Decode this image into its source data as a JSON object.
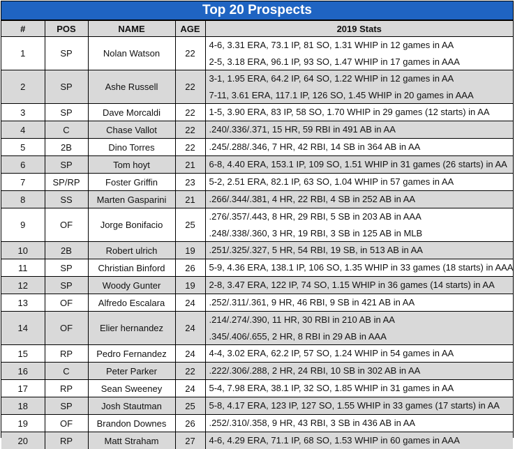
{
  "title": "Top 20 Prospects",
  "headers": [
    "#",
    "POS",
    "NAME",
    "AGE",
    "2019 Stats"
  ],
  "rows": [
    {
      "num": "1",
      "pos": "SP",
      "name": "Nolan Watson",
      "age": "22",
      "stats": [
        "4-6, 3.31 ERA, 73.1 IP, 81 SO, 1.31 WHIP in 12 games in AA",
        "2-5, 3.18 ERA, 96.1 IP, 93 SO, 1.47 WHIP in 17 games in AAA"
      ]
    },
    {
      "num": "2",
      "pos": "SP",
      "name": "Ashe Russell",
      "age": "22",
      "stats": [
        "3-1, 1.95 ERA, 64.2 IP, 64 SO, 1.22 WHIP in 12 games in AA",
        "7-11, 3.61 ERA, 117.1 IP, 126 SO, 1.45 WHIP in 20 games in AAA"
      ]
    },
    {
      "num": "3",
      "pos": "SP",
      "name": "Dave Morcaldi",
      "age": "22",
      "stats": [
        "1-5, 3.90 ERA, 83 IP,  58 SO, 1.70 WHIP in 29 games (12 starts) in AA"
      ]
    },
    {
      "num": "4",
      "pos": "C",
      "name": "Chase Vallot",
      "age": "22",
      "stats": [
        ".240/.336/.371, 15 HR, 59 RBI in 491 AB in AA"
      ]
    },
    {
      "num": "5",
      "pos": "2B",
      "name": "Dino Torres",
      "age": "22",
      "stats": [
        ".245/.288/.346, 7 HR, 42 RBI, 14 SB in 364 AB in AA"
      ]
    },
    {
      "num": "6",
      "pos": "SP",
      "name": "Tom hoyt",
      "age": "21",
      "stats": [
        "6-8, 4.40 ERA, 153.1 IP, 109 SO, 1.51 WHIP in 31 games (26 starts) in AA"
      ]
    },
    {
      "num": "7",
      "pos": "SP/RP",
      "name": "Foster Griffin",
      "age": "23",
      "stats": [
        "5-2, 2.51 ERA, 82.1 IP, 63 SO, 1.04 WHIP in 57 games in AA"
      ]
    },
    {
      "num": "8",
      "pos": "SS",
      "name": "Marten Gasparini",
      "age": "21",
      "stats": [
        ".266/.344/.381, 4 HR, 22 RBI, 4 SB in 252 AB in AA"
      ]
    },
    {
      "num": "9",
      "pos": "OF",
      "name": "Jorge Bonifacio",
      "age": "25",
      "stats": [
        ".276/.357/.443, 8 HR, 29 RBI, 5 SB in 203 AB in AAA",
        ".248/.338/.360, 3 HR, 19 RBI, 3 SB in 125 AB in MLB"
      ]
    },
    {
      "num": "10",
      "pos": "2B",
      "name": "Robert ulrich",
      "age": "19",
      "stats": [
        ".251/.325/.327, 5 HR, 54 RBI, 19 SB, in 513 AB in AA"
      ]
    },
    {
      "num": "11",
      "pos": "SP",
      "name": "Christian Binford",
      "age": "26",
      "stats": [
        "5-9, 4.36 ERA, 138.1 IP, 106 SO, 1.35 WHIP in 33 games (18 starts) in AAA"
      ]
    },
    {
      "num": "12",
      "pos": "SP",
      "name": "Woody Gunter",
      "age": "19",
      "stats": [
        "2-8, 3.47 ERA, 122 IP, 74 SO, 1.15 WHIP in 36 games (14 starts) in AA"
      ]
    },
    {
      "num": "13",
      "pos": "OF",
      "name": "Alfredo Escalara",
      "age": "24",
      "stats": [
        ".252/.311/.361, 9 HR, 46 RBI, 9 SB in 421 AB in AA"
      ]
    },
    {
      "num": "14",
      "pos": "OF",
      "name": "Elier hernandez",
      "age": "24",
      "stats": [
        ".214/.274/.390, 11 HR, 30 RBI in 210 AB in AA",
        ".345/.406/.655, 2 HR, 8 RBI in 29 AB in AAA"
      ]
    },
    {
      "num": "15",
      "pos": "RP",
      "name": "Pedro Fernandez",
      "age": "24",
      "stats": [
        "4-4, 3.02 ERA, 62.2 IP, 57 SO, 1.24 WHIP in 54 games in AA"
      ]
    },
    {
      "num": "16",
      "pos": "C",
      "name": "Peter Parker",
      "age": "22",
      "stats": [
        ".222/.306/.288, 2 HR, 24 RBI, 10 SB in 302 AB in AA"
      ]
    },
    {
      "num": "17",
      "pos": "RP",
      "name": "Sean Sweeney",
      "age": "24",
      "stats": [
        "5-4, 7.98 ERA, 38.1 IP, 32 SO, 1.85 WHIP in 31 games in AA"
      ]
    },
    {
      "num": "18",
      "pos": "SP",
      "name": "Josh Stautman",
      "age": "25",
      "stats": [
        "5-8, 4.17 ERA, 123 IP, 127 SO, 1.55 WHIP in 33 games (17 starts) in AA"
      ]
    },
    {
      "num": "19",
      "pos": "OF",
      "name": "Brandon Downes",
      "age": "26",
      "stats": [
        ".252/.310/.358, 9 HR, 43 RBI, 3 SB in 436 AB in AA"
      ]
    },
    {
      "num": "20",
      "pos": "RP",
      "name": "Matt Straham",
      "age": "27",
      "stats": [
        "4-6, 4.29 ERA, 71.1 IP, 68 SO, 1.53 WHIP in 60 games in AAA"
      ]
    }
  ],
  "colors": {
    "title_bg": "#1f64c2",
    "shade": "#d9d9d9"
  }
}
